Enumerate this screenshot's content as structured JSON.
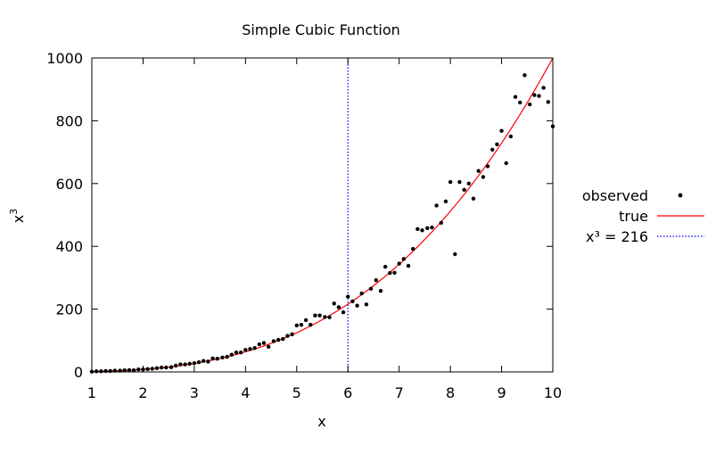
{
  "chart_data": {
    "type": "scatter",
    "title": "Simple Cubic Function",
    "xlabel": "x",
    "ylabel_base": "x",
    "ylabel_sup": "3",
    "xlim": [
      1,
      10
    ],
    "ylim": [
      0,
      1000
    ],
    "x_ticks": [
      "1",
      "2",
      "3",
      "4",
      "5",
      "6",
      "7",
      "8",
      "9",
      "10"
    ],
    "y_ticks": [
      "0",
      "200",
      "400",
      "600",
      "800",
      "1000"
    ],
    "grid": false,
    "legend_placement": "right",
    "series": [
      {
        "name": "observed",
        "kind": "points",
        "color": "#000000",
        "x": [
          1.0,
          1.09,
          1.18,
          1.27,
          1.36,
          1.45,
          1.55,
          1.64,
          1.73,
          1.82,
          1.91,
          2.0,
          2.09,
          2.18,
          2.27,
          2.36,
          2.45,
          2.55,
          2.64,
          2.73,
          2.82,
          2.91,
          3.0,
          3.09,
          3.18,
          3.27,
          3.36,
          3.45,
          3.55,
          3.64,
          3.73,
          3.82,
          3.91,
          4.0,
          4.09,
          4.18,
          4.27,
          4.36,
          4.45,
          4.55,
          4.64,
          4.73,
          4.82,
          4.91,
          5.0,
          5.09,
          5.18,
          5.27,
          5.36,
          5.45,
          5.55,
          5.64,
          5.73,
          5.82,
          5.91,
          6.0,
          6.09,
          6.18,
          6.27,
          6.36,
          6.45,
          6.55,
          6.64,
          6.73,
          6.82,
          6.91,
          7.0,
          7.09,
          7.18,
          7.27,
          7.36,
          7.45,
          7.55,
          7.64,
          7.73,
          7.82,
          7.91,
          8.0,
          8.09,
          8.18,
          8.27,
          8.36,
          8.45,
          8.55,
          8.64,
          8.73,
          8.82,
          8.91,
          9.0,
          9.09,
          9.18,
          9.27,
          9.36,
          9.45,
          9.55,
          9.64,
          9.73,
          9.82,
          9.91,
          10.0
        ],
        "y": [
          1,
          2,
          2,
          3,
          3,
          4,
          4,
          5,
          6,
          5,
          8,
          8,
          9,
          10,
          12,
          14,
          14,
          15,
          20,
          24,
          24,
          26,
          28,
          31,
          35,
          33,
          43,
          42,
          46,
          48,
          55,
          62,
          62,
          70,
          73,
          76,
          88,
          92,
          80,
          98,
          102,
          105,
          115,
          120,
          148,
          150,
          165,
          150,
          180,
          180,
          175,
          174,
          218,
          206,
          190,
          240,
          225,
          211,
          250,
          215,
          265,
          292,
          258,
          335,
          315,
          316,
          345,
          360,
          338,
          392,
          455,
          451,
          458,
          460,
          530,
          475,
          543,
          605,
          375,
          605,
          580,
          600,
          552,
          640,
          621,
          655,
          708,
          725,
          768,
          665,
          750,
          876,
          858,
          945,
          852,
          882,
          879,
          905,
          860,
          782
        ]
      },
      {
        "name": "true",
        "kind": "curve",
        "color": "#ff0000"
      },
      {
        "name": "x³ = 216",
        "kind": "vline",
        "color": "#0000ff",
        "x": 6
      }
    ]
  }
}
